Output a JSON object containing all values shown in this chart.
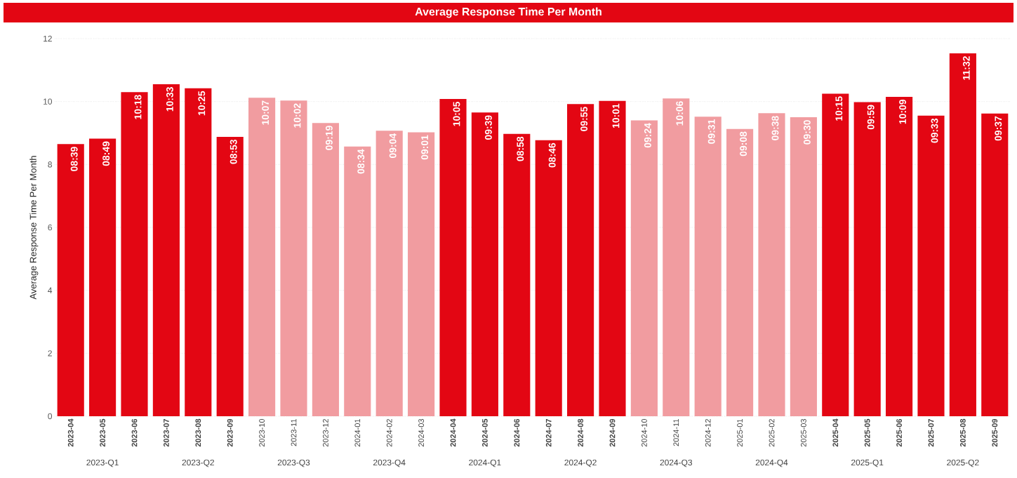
{
  "chart_data": {
    "type": "bar",
    "title": "Average Response Time Per Month",
    "ylabel": "Average Response Time Per Month",
    "categories": [
      "2023-04",
      "2023-05",
      "2023-06",
      "2023-07",
      "2023-08",
      "2023-09",
      "2023-10",
      "2023-11",
      "2023-12",
      "2024-01",
      "2024-02",
      "2024-03",
      "2024-04",
      "2024-05",
      "2024-06",
      "2024-07",
      "2024-08",
      "2024-09",
      "2024-10",
      "2024-11",
      "2024-12",
      "2025-01",
      "2025-02",
      "2025-03",
      "2025-04",
      "2025-05",
      "2025-06",
      "2025-07",
      "2025-08",
      "2025-09"
    ],
    "values": [
      8.65,
      8.82,
      10.3,
      10.55,
      10.42,
      8.88,
      10.12,
      10.03,
      9.32,
      8.57,
      9.07,
      9.02,
      10.08,
      9.65,
      8.97,
      8.77,
      9.92,
      10.02,
      9.4,
      10.1,
      9.52,
      9.13,
      9.63,
      9.5,
      10.25,
      9.98,
      10.15,
      9.55,
      11.53,
      9.62
    ],
    "value_labels": [
      "08:39",
      "08:49",
      "10:18",
      "10:33",
      "10:25",
      "08:53",
      "10:07",
      "10:02",
      "09:19",
      "08:34",
      "09:04",
      "09:01",
      "10:05",
      "09:39",
      "08:58",
      "08:46",
      "09:55",
      "10:01",
      "09:24",
      "10:06",
      "09:31",
      "09:08",
      "09:38",
      "09:30",
      "10:15",
      "09:59",
      "10:09",
      "09:33",
      "11:32",
      "09:37"
    ],
    "colors": [
      "#e30613",
      "#e30613",
      "#e30613",
      "#e30613",
      "#e30613",
      "#e30613",
      "#f19ca0",
      "#f19ca0",
      "#f19ca0",
      "#f19ca0",
      "#f19ca0",
      "#f19ca0",
      "#e30613",
      "#e30613",
      "#e30613",
      "#e30613",
      "#e30613",
      "#e30613",
      "#f19ca0",
      "#f19ca0",
      "#f19ca0",
      "#f19ca0",
      "#f19ca0",
      "#f19ca0",
      "#e30613",
      "#e30613",
      "#e30613",
      "#e30613",
      "#e30613",
      "#e30613"
    ],
    "annotations": [
      "2023-Q1",
      "2023-Q2",
      "2023-Q3",
      "2023-Q4",
      "2024-Q1",
      "2024-Q2",
      "2024-Q3",
      "2024-Q4",
      "2025-Q1",
      "2025-Q2"
    ],
    "ylim": [
      0,
      12
    ],
    "yticks": [
      0,
      2,
      4,
      6,
      8,
      10,
      12
    ],
    "grid": "y"
  }
}
